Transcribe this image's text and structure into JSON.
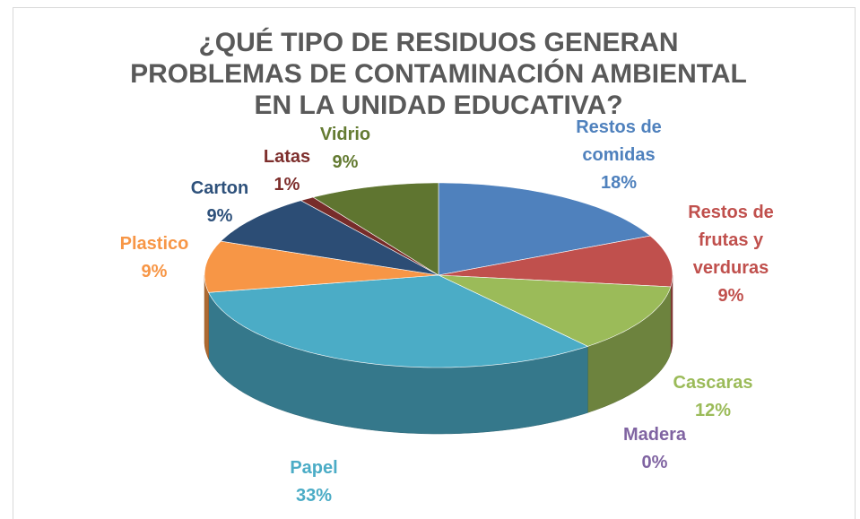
{
  "chart_data": {
    "type": "pie",
    "title": "¿QUÉ TIPO DE RESIDUOS GENERAN PROBLEMAS DE CONTAMINACIÓN AMBIENTAL EN LA UNIDAD EDUCATIVA?",
    "categories": [
      "Restos de comidas",
      "Restos de frutas y verduras",
      "Cascaras",
      "Madera",
      "Papel",
      "Plastico",
      "Carton",
      "Latas",
      "Vidrio"
    ],
    "values": [
      18,
      9,
      12,
      0,
      33,
      9,
      9,
      1,
      9
    ],
    "value_labels": [
      "18%",
      "9%",
      "12%",
      "0%",
      "33%",
      "9%",
      "9%",
      "1%",
      "9%"
    ],
    "colors": [
      "#4f81bd",
      "#c0504d",
      "#9bbb59",
      "#8064a2",
      "#4bacc6",
      "#f79646",
      "#2c4d75",
      "#772c2a",
      "#5f7530"
    ]
  }
}
